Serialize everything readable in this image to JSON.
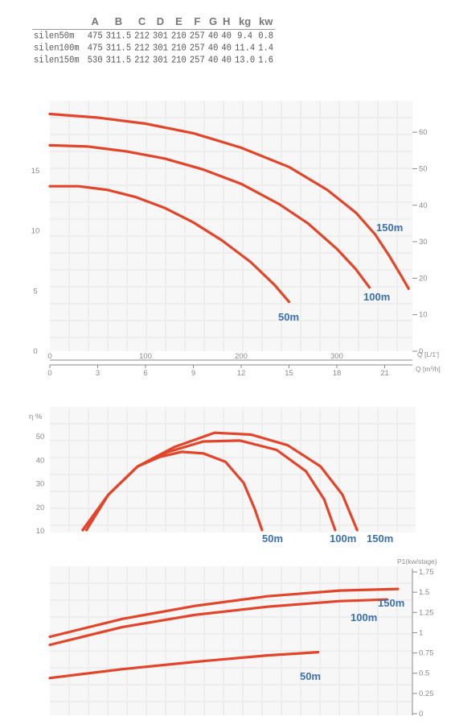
{
  "spec_table": {
    "columns": [
      "",
      "A",
      "B",
      "C",
      "D",
      "E",
      "F",
      "G",
      "H",
      "kg",
      "kw"
    ],
    "rows": [
      [
        "silen50m",
        "475",
        "311.5",
        "212",
        "301",
        "210",
        "257",
        "40",
        "40",
        "9.4",
        "0.8"
      ],
      [
        "silen100m",
        "475",
        "311.5",
        "212",
        "301",
        "210",
        "257",
        "40",
        "40",
        "11.4",
        "1.4"
      ],
      [
        "silen150m",
        "530",
        "311.5",
        "212",
        "301",
        "210",
        "257",
        "40",
        "40",
        "13.0",
        "1.6"
      ]
    ]
  },
  "chart_data": [
    {
      "type": "line",
      "title": "",
      "xlabel": "Q [L/1']",
      "x2label": "Q [m³/h]",
      "ylabel": "",
      "xlim": [
        0,
        380
      ],
      "xticks": [
        "0",
        "100",
        "200",
        "300"
      ],
      "x2lim": [
        0,
        22.8
      ],
      "x2ticks": [
        "0",
        "3",
        "6",
        "9",
        "12",
        "15",
        "18",
        "21"
      ],
      "ylim": [
        0,
        20
      ],
      "yticks_left": [
        "0",
        "5",
        "10",
        "15"
      ],
      "ylim_right": [
        0,
        66
      ],
      "yticks_right": [
        "0",
        "10",
        "20",
        "30",
        "40",
        "50",
        "60"
      ],
      "grid": true,
      "series": [
        {
          "name": "50m",
          "points": [
            [
              0,
              13.7
            ],
            [
              30,
              13.7
            ],
            [
              60,
              13.4
            ],
            [
              90,
              12.8
            ],
            [
              120,
              11.9
            ],
            [
              150,
              10.7
            ],
            [
              180,
              9.2
            ],
            [
              210,
              7.4
            ],
            [
              235,
              5.5
            ],
            [
              250,
              4.1
            ]
          ]
        },
        {
          "name": "100m",
          "points": [
            [
              0,
              17.1
            ],
            [
              40,
              17.0
            ],
            [
              80,
              16.6
            ],
            [
              120,
              16.0
            ],
            [
              160,
              15.1
            ],
            [
              200,
              13.9
            ],
            [
              240,
              12.2
            ],
            [
              270,
              10.6
            ],
            [
              300,
              8.5
            ],
            [
              320,
              6.8
            ],
            [
              334,
              5.3
            ]
          ]
        },
        {
          "name": "150m",
          "points": [
            [
              0,
              19.7
            ],
            [
              50,
              19.4
            ],
            [
              100,
              18.9
            ],
            [
              150,
              18.1
            ],
            [
              200,
              16.9
            ],
            [
              250,
              15.3
            ],
            [
              290,
              13.4
            ],
            [
              320,
              11.5
            ],
            [
              340,
              9.7
            ],
            [
              355,
              7.9
            ],
            [
              367,
              6.3
            ],
            [
              375,
              5.2
            ]
          ]
        }
      ]
    },
    {
      "type": "line",
      "title": "",
      "ylabel": "η %",
      "ylim": [
        10,
        56
      ],
      "yticks": [
        "10",
        "20",
        "30",
        "40",
        "50"
      ],
      "grid": true,
      "series": [
        {
          "name": "50m",
          "points": [
            [
              0.1,
              10
            ],
            [
              0.16,
              25
            ],
            [
              0.24,
              37
            ],
            [
              0.3,
              41
            ],
            [
              0.36,
              43.2
            ],
            [
              0.42,
              42.5
            ],
            [
              0.48,
              39
            ],
            [
              0.53,
              30
            ],
            [
              0.56,
              19
            ],
            [
              0.58,
              10
            ]
          ]
        },
        {
          "name": "100m",
          "points": [
            [
              0.09,
              10
            ],
            [
              0.16,
              25
            ],
            [
              0.24,
              37
            ],
            [
              0.32,
              43
            ],
            [
              0.42,
              47.6
            ],
            [
              0.52,
              48
            ],
            [
              0.62,
              44
            ],
            [
              0.7,
              35
            ],
            [
              0.75,
              23
            ],
            [
              0.78,
              10
            ]
          ]
        },
        {
          "name": "150m",
          "points": [
            [
              0.09,
              10
            ],
            [
              0.16,
              25
            ],
            [
              0.24,
              37
            ],
            [
              0.34,
              45.2
            ],
            [
              0.45,
              51.3
            ],
            [
              0.55,
              50.5
            ],
            [
              0.65,
              46
            ],
            [
              0.74,
              37
            ],
            [
              0.8,
              25
            ],
            [
              0.84,
              10
            ]
          ]
        }
      ]
    },
    {
      "type": "line",
      "title": "",
      "ylabel": "P1(kw/stage)",
      "ylim": [
        0,
        1.75
      ],
      "yticks": [
        "0",
        "0.25",
        "0.5",
        "0.75",
        "1",
        "1.25",
        "1.5",
        "1.75"
      ],
      "grid": true,
      "series": [
        {
          "name": "50m",
          "points": [
            [
              0.0,
              0.44
            ],
            [
              0.2,
              0.55
            ],
            [
              0.4,
              0.64
            ],
            [
              0.6,
              0.72
            ],
            [
              0.74,
              0.76
            ]
          ]
        },
        {
          "name": "100m",
          "points": [
            [
              0.0,
              0.85
            ],
            [
              0.2,
              1.07
            ],
            [
              0.4,
              1.22
            ],
            [
              0.6,
              1.32
            ],
            [
              0.8,
              1.39
            ],
            [
              0.93,
              1.41
            ]
          ]
        },
        {
          "name": "150m",
          "points": [
            [
              0.0,
              0.95
            ],
            [
              0.2,
              1.17
            ],
            [
              0.4,
              1.33
            ],
            [
              0.6,
              1.45
            ],
            [
              0.8,
              1.52
            ],
            [
              0.96,
              1.54
            ]
          ]
        }
      ]
    }
  ],
  "colors": {
    "curve": "#e2452a",
    "label": "#3a6fb6",
    "grid": "#e6e6e6",
    "panel": "#f7f7f7",
    "axis": "#8a8a8a"
  }
}
